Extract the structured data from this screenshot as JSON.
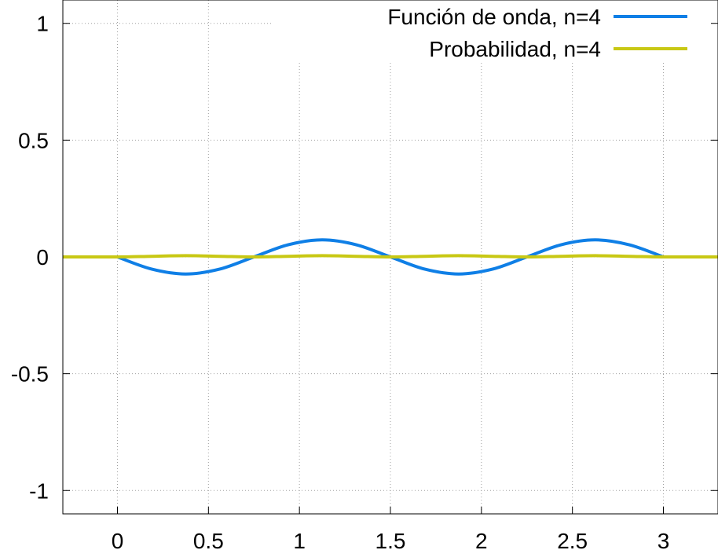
{
  "chart_data": {
    "type": "line",
    "title": "",
    "xlabel": "",
    "ylabel": "",
    "xlim": [
      -0.3,
      3.3
    ],
    "ylim": [
      -1.1,
      1.1
    ],
    "grid": true,
    "legend_position": "top-right",
    "x_ticks": [
      {
        "value": 0,
        "label": "0"
      },
      {
        "value": 0.5,
        "label": "0.5"
      },
      {
        "value": 1,
        "label": "1"
      },
      {
        "value": 1.5,
        "label": "1.5"
      },
      {
        "value": 2,
        "label": "2"
      },
      {
        "value": 2.5,
        "label": "2.5"
      },
      {
        "value": 3,
        "label": "3"
      }
    ],
    "y_ticks": [
      {
        "value": 1,
        "label": "1"
      },
      {
        "value": 0.5,
        "label": "0.5"
      },
      {
        "value": 0,
        "label": "0"
      },
      {
        "value": -0.5,
        "label": "-0.5"
      },
      {
        "value": -1,
        "label": "-1"
      }
    ],
    "series": [
      {
        "name": "Función de onda, n=4",
        "color": "#0f7fe6",
        "x": [
          0,
          0.1875,
          0.375,
          0.5625,
          0.75,
          0.9375,
          1.125,
          1.3125,
          1.5,
          1.6875,
          1.875,
          2.0625,
          2.25,
          2.4375,
          2.625,
          2.8125,
          3
        ],
        "y": [
          0,
          -0.052,
          -0.073,
          -0.052,
          0,
          0.052,
          0.073,
          0.052,
          0,
          -0.052,
          -0.073,
          -0.052,
          0,
          0.052,
          0.073,
          0.052,
          0
        ]
      },
      {
        "name": "Probabilidad, n=4",
        "color": "#c8c814",
        "x": [
          -0.3,
          0,
          0.1875,
          0.375,
          0.5625,
          0.75,
          0.9375,
          1.125,
          1.3125,
          1.5,
          1.6875,
          1.875,
          2.0625,
          2.25,
          2.4375,
          2.625,
          2.8125,
          3,
          3.3
        ],
        "y": [
          0,
          0,
          0.0027,
          0.0053,
          0.0027,
          0,
          0.0027,
          0.0053,
          0.0027,
          0,
          0.0027,
          0.0053,
          0.0027,
          0,
          0.0027,
          0.0053,
          0.0027,
          0,
          0
        ]
      }
    ]
  }
}
